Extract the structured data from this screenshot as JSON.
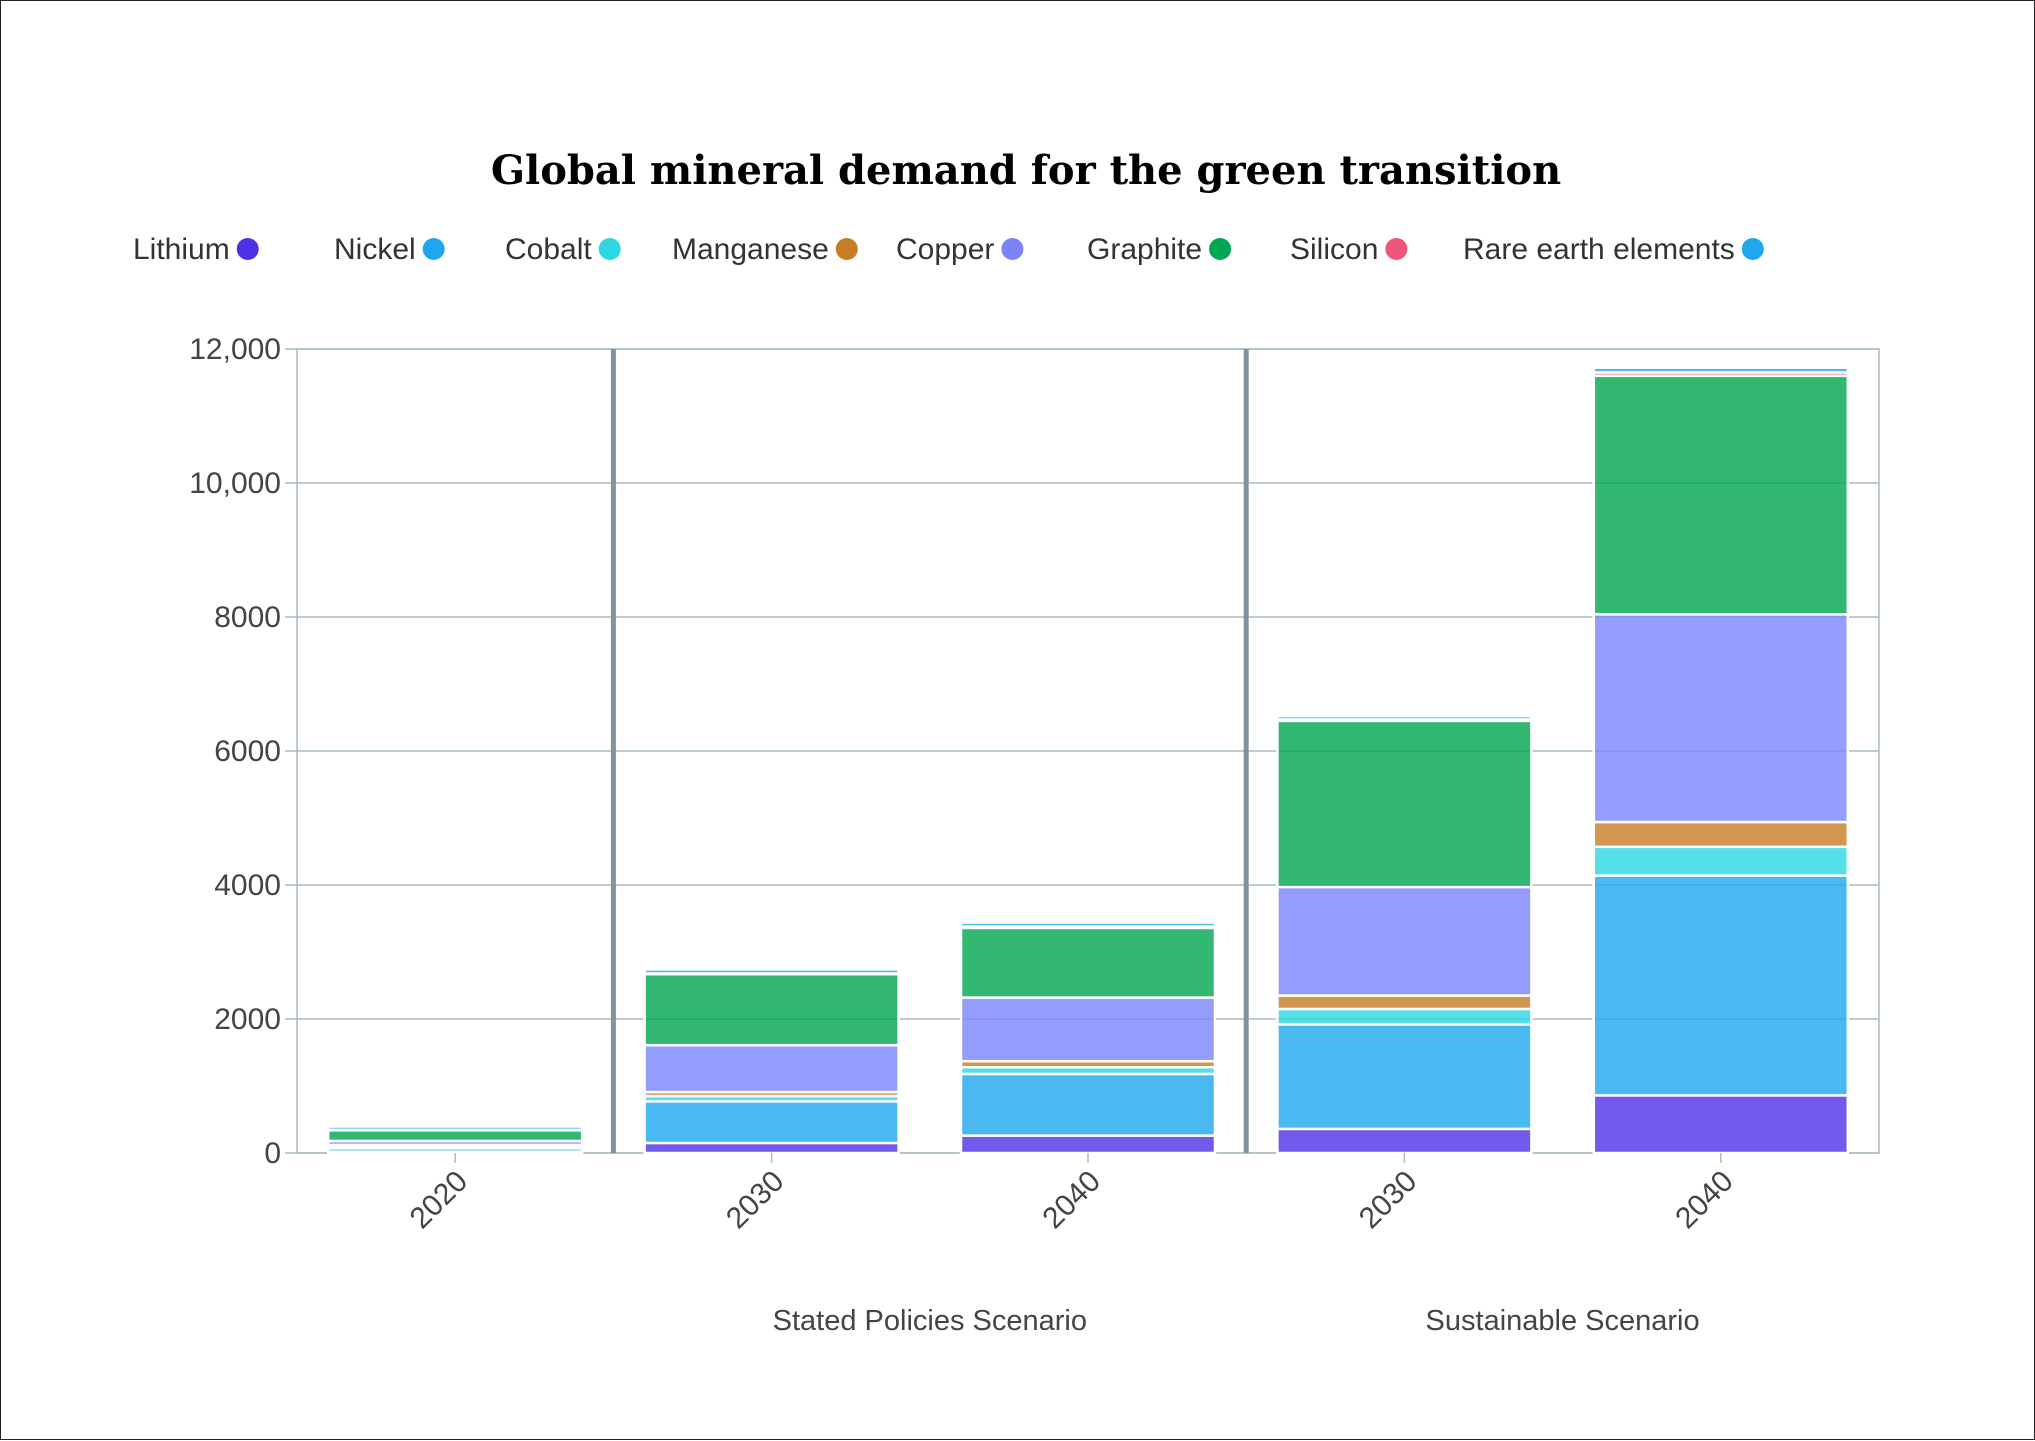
{
  "chart_data": {
    "type": "bar",
    "stacked": true,
    "title": "Global mineral demand for the green transition",
    "categories": [
      "2020",
      "2030",
      "2040",
      "2030",
      "2040"
    ],
    "groups": [
      {
        "label": "",
        "categories": [
          0
        ]
      },
      {
        "label": "Stated Policies Scenario",
        "categories": [
          1,
          2
        ]
      },
      {
        "label": "Sustainable Scenario",
        "categories": [
          3,
          4
        ]
      }
    ],
    "series": [
      {
        "name": "Lithium",
        "color": "#4f30e6",
        "values": [
          20,
          150,
          260,
          360,
          860
        ]
      },
      {
        "name": "Nickel",
        "color": "#1ea7ee",
        "values": [
          50,
          620,
          920,
          1560,
          3280
        ]
      },
      {
        "name": "Cobalt",
        "color": "#2ad7e2",
        "values": [
          30,
          80,
          100,
          230,
          430
        ]
      },
      {
        "name": "Manganese",
        "color": "#c97d23",
        "values": [
          20,
          60,
          90,
          200,
          370
        ]
      },
      {
        "name": "Copper",
        "color": "#7b84fb",
        "values": [
          60,
          700,
          950,
          1620,
          3100
        ]
      },
      {
        "name": "Graphite",
        "color": "#00a651",
        "values": [
          160,
          1060,
          1040,
          2480,
          3560
        ]
      },
      {
        "name": "Silicon",
        "color": "#f0557a",
        "values": [
          5,
          10,
          20,
          20,
          50
        ]
      },
      {
        "name": "Rare earth elements",
        "color": "#1ea7ee",
        "values": [
          50,
          60,
          60,
          50,
          70
        ]
      }
    ],
    "ylim": [
      0,
      12000
    ],
    "yticks": [
      0,
      2000,
      4000,
      6000,
      8000,
      10000,
      12000
    ],
    "ytick_labels": [
      "0",
      "2000",
      "4000",
      "6000",
      "8000",
      "10,000",
      "12,000"
    ],
    "xlabel": "",
    "ylabel": "",
    "grid": true,
    "legend": "top"
  }
}
